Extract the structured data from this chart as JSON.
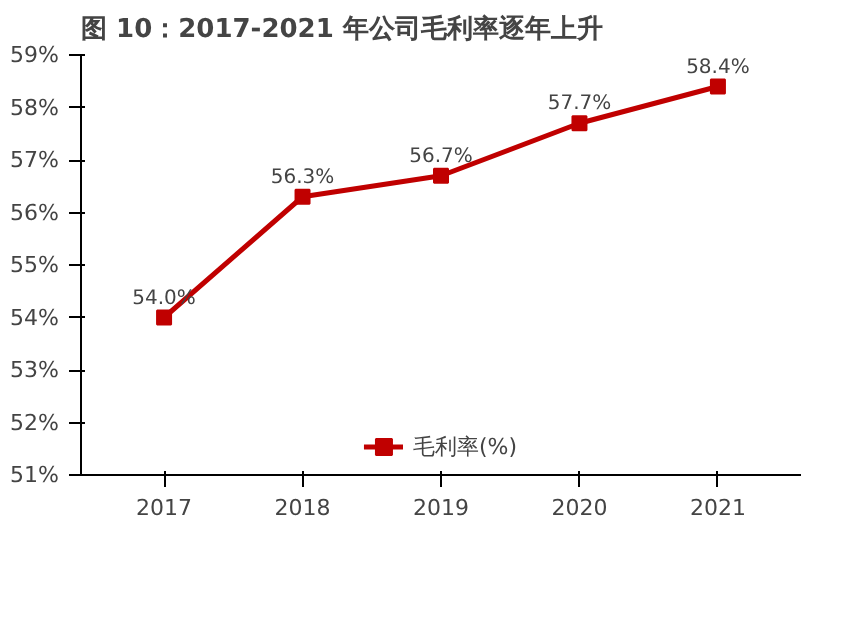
{
  "chart_data": {
    "type": "line",
    "title": "图 10：2017-2021 年公司毛利率逐年上升",
    "categories": [
      "2017",
      "2018",
      "2019",
      "2020",
      "2021"
    ],
    "series": [
      {
        "name": "毛利率(%)",
        "color": "#c00000",
        "values": [
          54.0,
          56.3,
          56.7,
          57.7,
          58.4
        ],
        "value_labels": [
          "54.0%",
          "56.3%",
          "56.7%",
          "57.7%",
          "58.4%"
        ]
      }
    ],
    "ylim": [
      51,
      59
    ],
    "yticks": [
      {
        "value": 51,
        "label": "51%"
      },
      {
        "value": 52,
        "label": "52%"
      },
      {
        "value": 53,
        "label": "53%"
      },
      {
        "value": 54,
        "label": "54%"
      },
      {
        "value": 55,
        "label": "55%"
      },
      {
        "value": 56,
        "label": "56%"
      },
      {
        "value": 57,
        "label": "57%"
      },
      {
        "value": 58,
        "label": "58%"
      },
      {
        "value": 59,
        "label": "59%"
      }
    ],
    "marker": "square",
    "line_style": "solid",
    "grid": false,
    "legend": "bottom"
  }
}
